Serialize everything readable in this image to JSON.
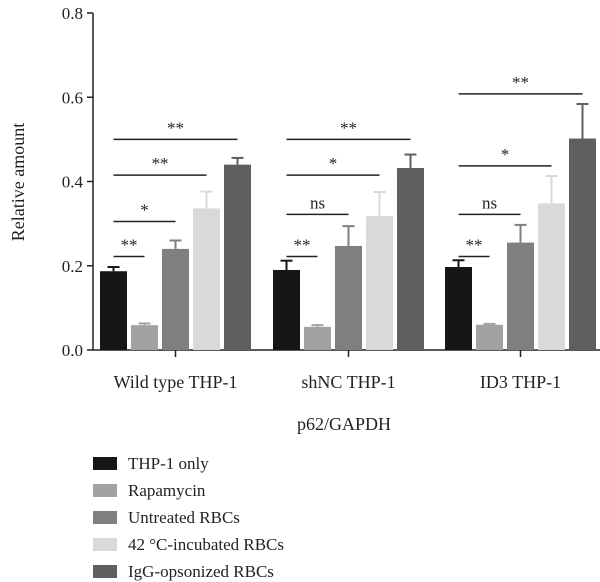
{
  "chart_data": {
    "type": "bar",
    "title": "",
    "xlabel": "p62/GAPDH",
    "ylabel": "Relative amount",
    "ylim": [
      0,
      0.8
    ],
    "yticks": [
      "0.0",
      "0.2",
      "0.4",
      "0.6",
      "0.8"
    ],
    "categories": [
      "Wild type THP-1",
      "shNC THP-1",
      "ID3 THP-1"
    ],
    "series": [
      {
        "name": "THP-1 only",
        "color": "#161616",
        "values": [
          0.187,
          0.19,
          0.197
        ],
        "errors": [
          0.01,
          0.022,
          0.016
        ]
      },
      {
        "name": "Rapamycin",
        "color": "#a2a2a2",
        "values": [
          0.059,
          0.055,
          0.06
        ],
        "errors": [
          0.004,
          0.004,
          0.002
        ]
      },
      {
        "name": "Untreated RBCs",
        "color": "#7f7f7f",
        "values": [
          0.24,
          0.247,
          0.255
        ],
        "errors": [
          0.02,
          0.047,
          0.042
        ]
      },
      {
        "name": "42 °C-incubated RBCs",
        "color": "#d9d9d9",
        "values": [
          0.336,
          0.318,
          0.348
        ],
        "errors": [
          0.04,
          0.057,
          0.065
        ]
      },
      {
        "name": "IgG-opsonized RBCs",
        "color": "#5f5f5f",
        "values": [
          0.44,
          0.432,
          0.502
        ],
        "errors": [
          0.016,
          0.032,
          0.082
        ]
      }
    ],
    "significance": [
      {
        "group": 0,
        "from": 0,
        "to": 1,
        "y": 0.222,
        "label": "**"
      },
      {
        "group": 0,
        "from": 0,
        "to": 2,
        "y": 0.305,
        "label": "*"
      },
      {
        "group": 0,
        "from": 0,
        "to": 3,
        "y": 0.415,
        "label": "**"
      },
      {
        "group": 0,
        "from": 0,
        "to": 4,
        "y": 0.5,
        "label": "**"
      },
      {
        "group": 1,
        "from": 0,
        "to": 1,
        "y": 0.222,
        "label": "**"
      },
      {
        "group": 1,
        "from": 0,
        "to": 2,
        "y": 0.322,
        "label": "ns"
      },
      {
        "group": 1,
        "from": 0,
        "to": 3,
        "y": 0.415,
        "label": "*"
      },
      {
        "group": 1,
        "from": 0,
        "to": 4,
        "y": 0.5,
        "label": "**"
      },
      {
        "group": 2,
        "from": 0,
        "to": 1,
        "y": 0.222,
        "label": "**"
      },
      {
        "group": 2,
        "from": 0,
        "to": 2,
        "y": 0.322,
        "label": "ns"
      },
      {
        "group": 2,
        "from": 0,
        "to": 3,
        "y": 0.437,
        "label": "*"
      },
      {
        "group": 2,
        "from": 0,
        "to": 4,
        "y": 0.608,
        "label": "**"
      }
    ],
    "legend_position": "bottom-left",
    "grid": false
  }
}
